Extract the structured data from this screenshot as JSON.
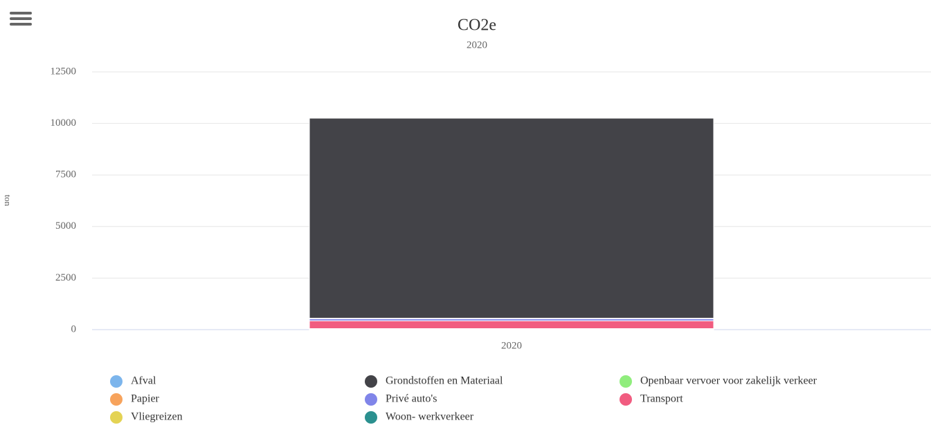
{
  "chart_data": {
    "type": "stacked-bar",
    "title": "CO2e",
    "subtitle": "2020",
    "y_label": "ton",
    "categories": [
      "2020"
    ],
    "series": [
      {
        "name": "Afval",
        "color": "#7cb5ec",
        "values": [
          20
        ]
      },
      {
        "name": "Grondstoffen en Materiaal",
        "color": "#434348",
        "values": [
          9700
        ]
      },
      {
        "name": "Openbaar vervoer voor zakelijk verkeer",
        "color": "#90ed7d",
        "values": [
          10
        ]
      },
      {
        "name": "Papier",
        "color": "#f7a35c",
        "values": [
          15
        ]
      },
      {
        "name": "Privé auto's",
        "color": "#8085e9",
        "values": [
          100
        ]
      },
      {
        "name": "Transport",
        "color": "#f15c80",
        "values": [
          380
        ]
      },
      {
        "name": "Vliegreizen",
        "color": "#e4d354",
        "values": [
          20
        ]
      },
      {
        "name": "Woon- werkverkeer",
        "color": "#2b908f",
        "values": [
          30
        ]
      }
    ],
    "ylim": [
      0,
      12500
    ],
    "yticks": [
      0,
      2500,
      5000,
      7500,
      10000,
      12500
    ],
    "grid": true
  }
}
